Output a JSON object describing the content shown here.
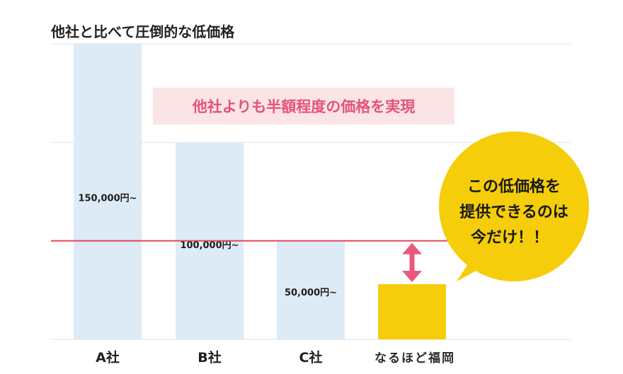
{
  "colors": {
    "bar_competitor": "#dcebf6",
    "bar_brand": "#f5cd0a",
    "reference_line": "#e8435a",
    "arrow": "#e9597e",
    "banner_bg": "#fbe4e6",
    "banner_text": "#e5537a",
    "bubble": "#f5cd0a",
    "gridline": "#e2e2e2"
  },
  "chart_data": {
    "type": "bar",
    "title": "他社と比べて圧倒的な低価格",
    "categories": [
      "A社",
      "B社",
      "C社",
      "なるほど福岡"
    ],
    "values": [
      150000,
      100000,
      50000,
      28000
    ],
    "data_labels": [
      "150,000円~",
      "100,000円~",
      "50,000円~",
      ""
    ],
    "ylim": [
      0,
      150000
    ],
    "grid": true,
    "reference_line_value": 50000,
    "highlight_category": "なるほど福岡",
    "xlabel": "",
    "ylabel": ""
  },
  "banner": {
    "text": "他社よりも半額程度の価格を実現"
  },
  "bubble": {
    "lines": [
      "この低価格を",
      "提供できるのは",
      "今だけ！！"
    ]
  }
}
